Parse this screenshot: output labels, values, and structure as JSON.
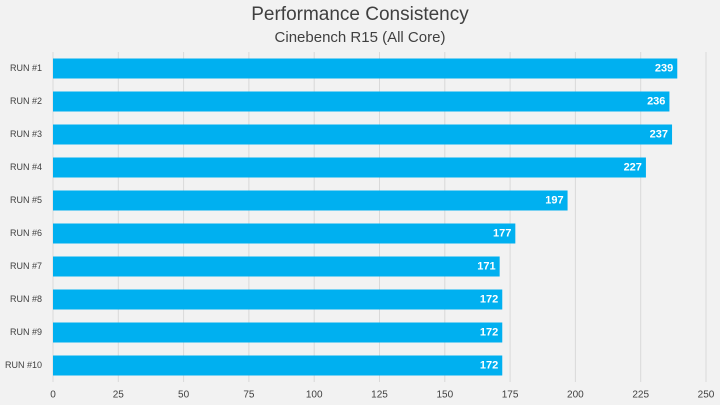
{
  "chart_data": {
    "type": "bar",
    "orientation": "horizontal",
    "title": "Performance Consistency",
    "subtitle": "Cinebench R15 (All Core)",
    "categories": [
      "RUN #1",
      "RUN #2",
      "RUN #3",
      "RUN #4",
      "RUN #5",
      "RUN #6",
      "RUN #7",
      "RUN #8",
      "RUN #9",
      "RUN #10"
    ],
    "values": [
      239,
      236,
      237,
      227,
      197,
      177,
      171,
      172,
      172,
      172
    ],
    "color": "#00b0f0",
    "xlim": [
      0,
      250
    ],
    "xticks": [
      0,
      25,
      50,
      75,
      100,
      125,
      150,
      175,
      200,
      225,
      250
    ],
    "grid": true
  }
}
